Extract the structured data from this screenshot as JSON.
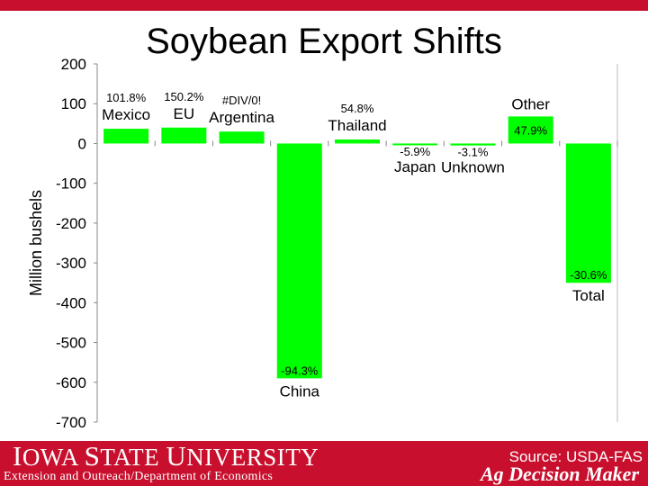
{
  "header": {
    "title": "Soybean Export Shifts"
  },
  "colors": {
    "bar": "#00ff00",
    "brand": "#c8102e"
  },
  "chart_data": {
    "type": "bar",
    "title": "Soybean Export Shifts",
    "xlabel": "",
    "ylabel": "Million bushels",
    "ylim": [
      -700,
      200
    ],
    "yticks": [
      200,
      100,
      0,
      -100,
      -200,
      -300,
      -400,
      -500,
      -600,
      -700
    ],
    "categories": [
      "Mexico",
      "EU",
      "Argentina",
      "China",
      "Thailand",
      "Japan",
      "Unknown",
      "Other",
      "Total"
    ],
    "values": [
      37,
      40,
      30,
      -590,
      10,
      -3,
      -5,
      68,
      -350
    ],
    "data_labels": [
      "101.8%",
      "150.2%",
      "#DIV/0!",
      "-94.3%",
      "54.8%",
      "-5.9%",
      "-3.1%",
      "47.9%",
      "-30.6%"
    ],
    "grid": false,
    "legend": "none"
  },
  "footer": {
    "university": "Iowa State University",
    "extension": "Extension and Outreach/Department of Economics",
    "source": "Source: USDA-FAS",
    "brand": "Ag Decision Maker"
  }
}
